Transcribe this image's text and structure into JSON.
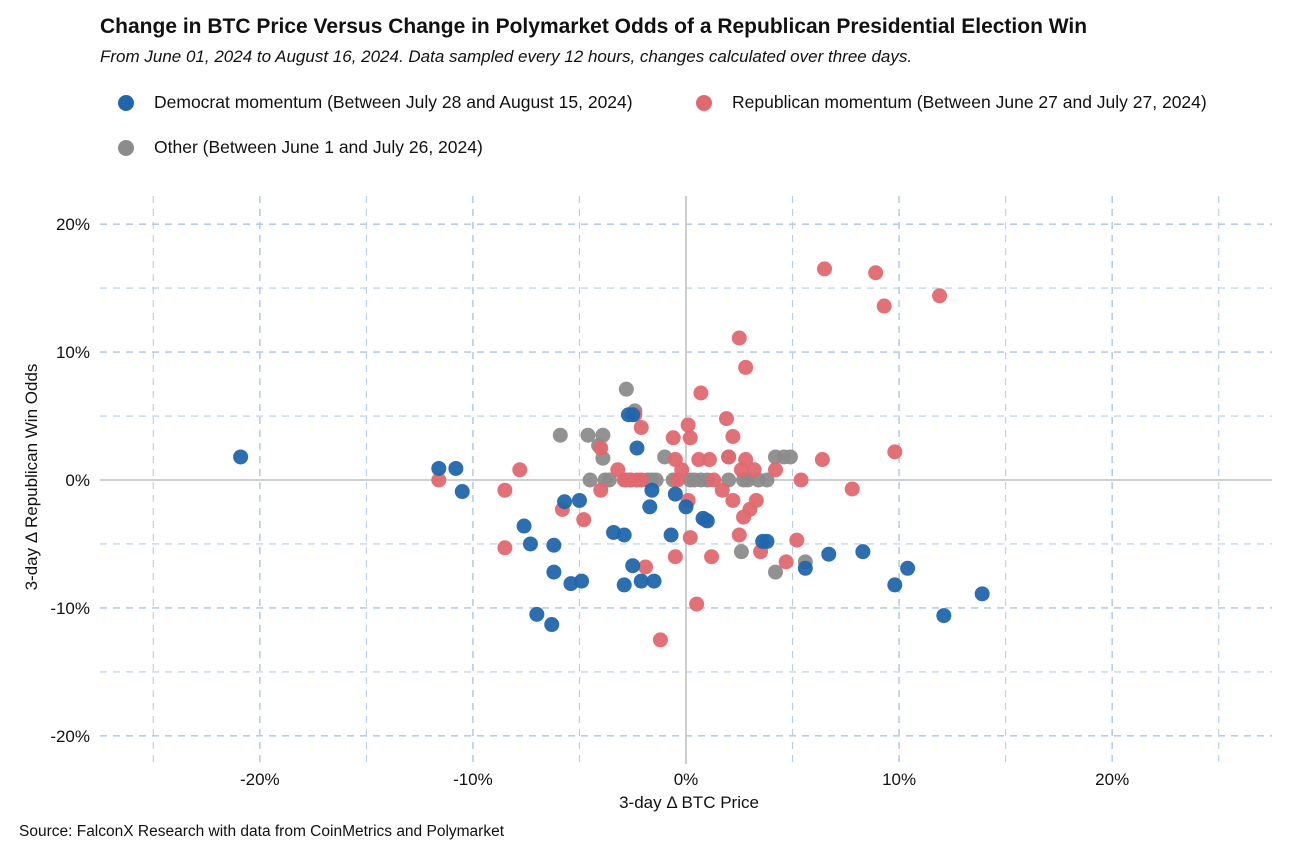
{
  "chart_data": {
    "type": "scatter",
    "title": "Change in BTC Price Versus Change in Polymarket Odds of a Republican Presidential Election Win",
    "subtitle": "From June 01, 2024 to August 16, 2024. Data sampled every 12 hours, changes calculated over three days.",
    "xlabel": "3-day Δ BTC Price",
    "ylabel": "3-day Δ Republican Win Odds",
    "source": "Source: FalconX Research with data from CoinMetrics and Polymarket",
    "xlim": [
      -27.5,
      27.5
    ],
    "ylim": [
      -22.2,
      22.2
    ],
    "x_ticks": [
      -20,
      -10,
      0,
      10,
      20
    ],
    "x_tick_labels": [
      "-20%",
      "-10%",
      "0%",
      "10%",
      "20%"
    ],
    "y_ticks": [
      -20,
      -10,
      0,
      10,
      20
    ],
    "y_tick_labels": [
      "-20%",
      "-10%",
      "0%",
      "10%",
      "20%"
    ],
    "grid": true,
    "legend_position": "top",
    "series": [
      {
        "name": "Democrat momentum (Between July 28 and August 15, 2024)",
        "color": "#2166ac",
        "points": [
          [
            -20.9,
            1.8
          ],
          [
            -11.6,
            0.9
          ],
          [
            -10.8,
            0.9
          ],
          [
            -10.5,
            -0.9
          ],
          [
            -7.6,
            -3.6
          ],
          [
            -7.3,
            -5.0
          ],
          [
            -7.0,
            -10.5
          ],
          [
            -6.3,
            -11.3
          ],
          [
            -6.2,
            -5.1
          ],
          [
            -6.2,
            -7.2
          ],
          [
            -5.7,
            -1.7
          ],
          [
            -5.4,
            -8.1
          ],
          [
            -5.0,
            -1.6
          ],
          [
            -4.9,
            -7.9
          ],
          [
            -3.4,
            -4.1
          ],
          [
            -2.9,
            -4.3
          ],
          [
            -2.9,
            -8.2
          ],
          [
            -2.7,
            5.1
          ],
          [
            -2.5,
            5.1
          ],
          [
            -2.5,
            -6.7
          ],
          [
            -2.3,
            2.5
          ],
          [
            -2.1,
            -7.9
          ],
          [
            -1.7,
            -2.1
          ],
          [
            -1.6,
            -0.8
          ],
          [
            -1.5,
            -7.9
          ],
          [
            -0.7,
            -4.3
          ],
          [
            -0.5,
            -1.1
          ],
          [
            0.0,
            -2.1
          ],
          [
            0.8,
            -3.0
          ],
          [
            1.0,
            -3.2
          ],
          [
            3.6,
            -4.8
          ],
          [
            3.8,
            -4.8
          ],
          [
            5.6,
            -6.9
          ],
          [
            6.7,
            -5.8
          ],
          [
            8.3,
            -5.6
          ],
          [
            9.8,
            -8.2
          ],
          [
            10.4,
            -6.9
          ],
          [
            12.1,
            -10.6
          ],
          [
            13.9,
            -8.9
          ]
        ]
      },
      {
        "name": "Republican momentum (Between June 27 and July 27, 2024)",
        "color": "#e06870",
        "points": [
          [
            -11.6,
            0.0
          ],
          [
            -7.8,
            0.8
          ],
          [
            -8.5,
            -0.8
          ],
          [
            -8.5,
            -5.3
          ],
          [
            -5.8,
            -2.3
          ],
          [
            -4.8,
            -3.1
          ],
          [
            -4.0,
            -0.8
          ],
          [
            -4.0,
            2.5
          ],
          [
            -3.2,
            0.8
          ],
          [
            -2.9,
            0.0
          ],
          [
            -2.6,
            0.0
          ],
          [
            -2.4,
            5.1
          ],
          [
            -2.3,
            0.0
          ],
          [
            -2.1,
            4.1
          ],
          [
            -2.1,
            0.0
          ],
          [
            -1.9,
            -6.8
          ],
          [
            -1.2,
            -12.5
          ],
          [
            -0.6,
            3.3
          ],
          [
            -0.5,
            1.6
          ],
          [
            -0.5,
            -6.0
          ],
          [
            -0.4,
            0.0
          ],
          [
            -0.2,
            0.8
          ],
          [
            0.1,
            4.3
          ],
          [
            0.2,
            3.3
          ],
          [
            0.2,
            -4.5
          ],
          [
            0.1,
            -1.6
          ],
          [
            0.5,
            -9.7
          ],
          [
            0.6,
            1.6
          ],
          [
            0.7,
            6.8
          ],
          [
            0.9,
            -3.1
          ],
          [
            1.1,
            1.6
          ],
          [
            1.2,
            -6.0
          ],
          [
            1.3,
            0.0
          ],
          [
            1.7,
            -0.8
          ],
          [
            1.9,
            4.8
          ],
          [
            2.0,
            1.8
          ],
          [
            2.2,
            3.4
          ],
          [
            2.2,
            -1.6
          ],
          [
            2.5,
            11.1
          ],
          [
            2.5,
            -4.3
          ],
          [
            2.6,
            0.8
          ],
          [
            2.7,
            -2.9
          ],
          [
            2.8,
            1.6
          ],
          [
            2.8,
            8.8
          ],
          [
            3.0,
            -2.3
          ],
          [
            3.2,
            0.8
          ],
          [
            3.3,
            -1.6
          ],
          [
            3.5,
            -5.6
          ],
          [
            4.2,
            0.8
          ],
          [
            4.7,
            -6.4
          ],
          [
            5.2,
            -4.7
          ],
          [
            5.4,
            0.0
          ],
          [
            6.4,
            1.6
          ],
          [
            6.5,
            16.5
          ],
          [
            7.8,
            -0.7
          ],
          [
            8.9,
            16.2
          ],
          [
            9.3,
            13.6
          ],
          [
            9.8,
            2.2
          ],
          [
            11.9,
            14.4
          ]
        ]
      },
      {
        "name": "Other (Between June 1 and July 26, 2024)",
        "color": "#8c8c8c",
        "points": [
          [
            -5.9,
            3.5
          ],
          [
            -4.6,
            3.5
          ],
          [
            -4.5,
            0.0
          ],
          [
            -4.1,
            2.7
          ],
          [
            -3.9,
            3.5
          ],
          [
            -3.9,
            1.7
          ],
          [
            -3.8,
            0.0
          ],
          [
            -3.6,
            0.0
          ],
          [
            -2.8,
            7.1
          ],
          [
            -2.8,
            0.0
          ],
          [
            -2.6,
            0.0
          ],
          [
            -2.4,
            5.4
          ],
          [
            -1.8,
            0.0
          ],
          [
            -1.6,
            0.0
          ],
          [
            -1.4,
            0.0
          ],
          [
            -1.0,
            1.8
          ],
          [
            -0.6,
            0.0
          ],
          [
            0.2,
            0.0
          ],
          [
            0.4,
            0.0
          ],
          [
            0.7,
            0.0
          ],
          [
            1.0,
            0.0
          ],
          [
            2.0,
            0.0
          ],
          [
            2.0,
            1.8
          ],
          [
            2.7,
            0.0
          ],
          [
            2.9,
            0.0
          ],
          [
            3.4,
            0.0
          ],
          [
            3.8,
            0.0
          ],
          [
            2.6,
            -5.6
          ],
          [
            4.2,
            1.8
          ],
          [
            4.2,
            -7.2
          ],
          [
            4.6,
            1.8
          ],
          [
            4.9,
            1.8
          ],
          [
            5.6,
            -6.4
          ]
        ]
      }
    ]
  }
}
